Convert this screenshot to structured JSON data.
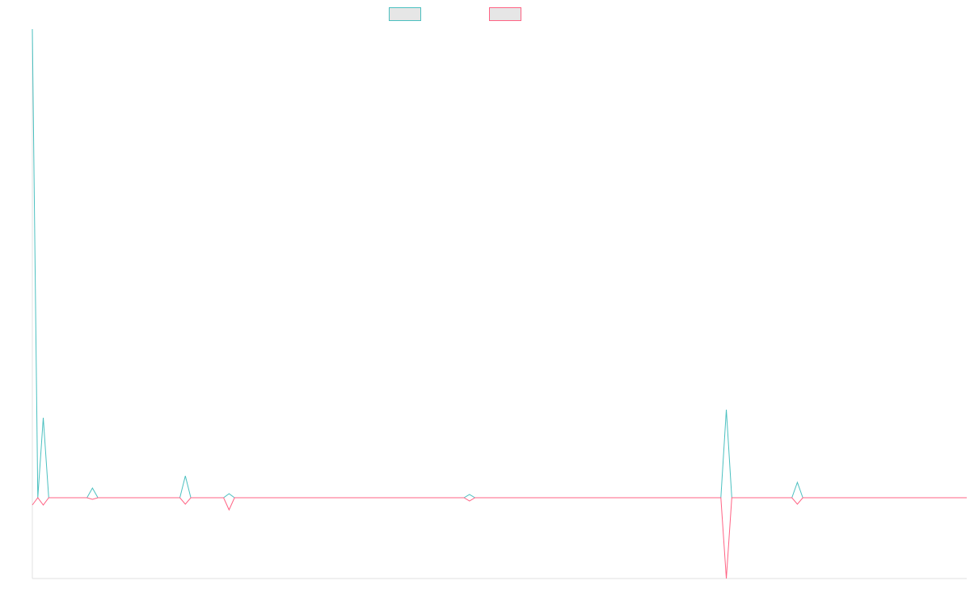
{
  "chart_data": {
    "type": "line",
    "title": "",
    "xlabel": "",
    "ylabel": "",
    "grid": false,
    "legend_placement": "top-center",
    "x_count": 172,
    "ylim": [
      -1.0,
      5.8
    ],
    "colors": {
      "series_a": "#4bc0c0",
      "series_b": "#ff6384",
      "legend_fill": "#e6e6e6"
    },
    "series": [
      {
        "color": "#4bc0c0",
        "nonzero": {
          "0": 5.8,
          "2": 0.99,
          "11": 0.12,
          "28": 0.27,
          "36": 0.05,
          "80": 0.04,
          "127": 1.09,
          "140": 0.19
        }
      },
      {
        "color": "#ff6384",
        "nonzero": {
          "0": -0.09,
          "2": -0.09,
          "11": -0.02,
          "28": -0.08,
          "36": -0.15,
          "80": -0.04,
          "127": -1.0,
          "140": -0.08
        }
      }
    ]
  }
}
